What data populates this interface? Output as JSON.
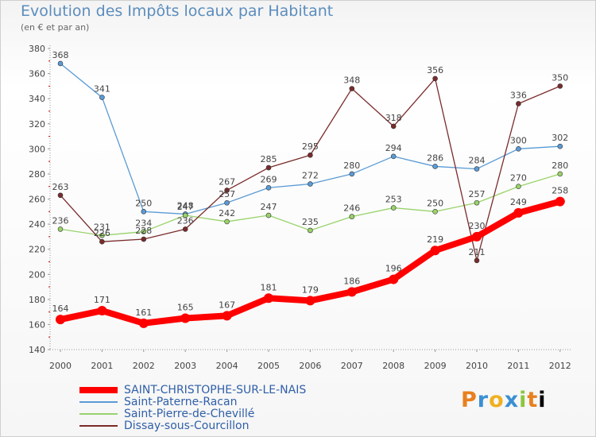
{
  "title": "Evolution des Impôts locaux par Habitant",
  "subtitle": "(en € et par an)",
  "brand": "Proxiti",
  "chart_data": {
    "type": "line",
    "title": "Evolution des Impôts locaux par Habitant",
    "subtitle": "(en € et par an)",
    "xlabel": "",
    "ylabel": "",
    "x": [
      "2000",
      "2001",
      "2002",
      "2003",
      "2004",
      "2005",
      "2006",
      "2007",
      "2008",
      "2009",
      "2010",
      "2011",
      "2012"
    ],
    "ylim": [
      140,
      380
    ],
    "yticks": [
      140,
      160,
      180,
      200,
      220,
      240,
      260,
      280,
      300,
      320,
      340,
      360,
      380
    ],
    "grid": false,
    "legend": "bottom-left",
    "series": [
      {
        "name": "SAINT-CHRISTOPHE-SUR-LE-NAIS",
        "color": "#ff0000",
        "values": [
          164,
          171,
          161,
          165,
          167,
          181,
          179,
          186,
          196,
          219,
          230,
          249,
          258
        ]
      },
      {
        "name": "Saint-Paterne-Racan",
        "color": "#5b9bd5",
        "values": [
          368,
          341,
          250,
          248,
          257,
          269,
          272,
          280,
          294,
          286,
          284,
          300,
          302
        ]
      },
      {
        "name": "Saint-Pierre-de-Chevillé",
        "color": "#99d36b",
        "values": [
          236,
          231,
          234,
          247,
          242,
          247,
          235,
          246,
          253,
          250,
          257,
          270,
          280
        ]
      },
      {
        "name": "Dissay-sous-Courcillon",
        "color": "#7a2b2b",
        "values": [
          263,
          226,
          228,
          236,
          267,
          285,
          295,
          348,
          318,
          356,
          211,
          336,
          350
        ]
      }
    ]
  }
}
